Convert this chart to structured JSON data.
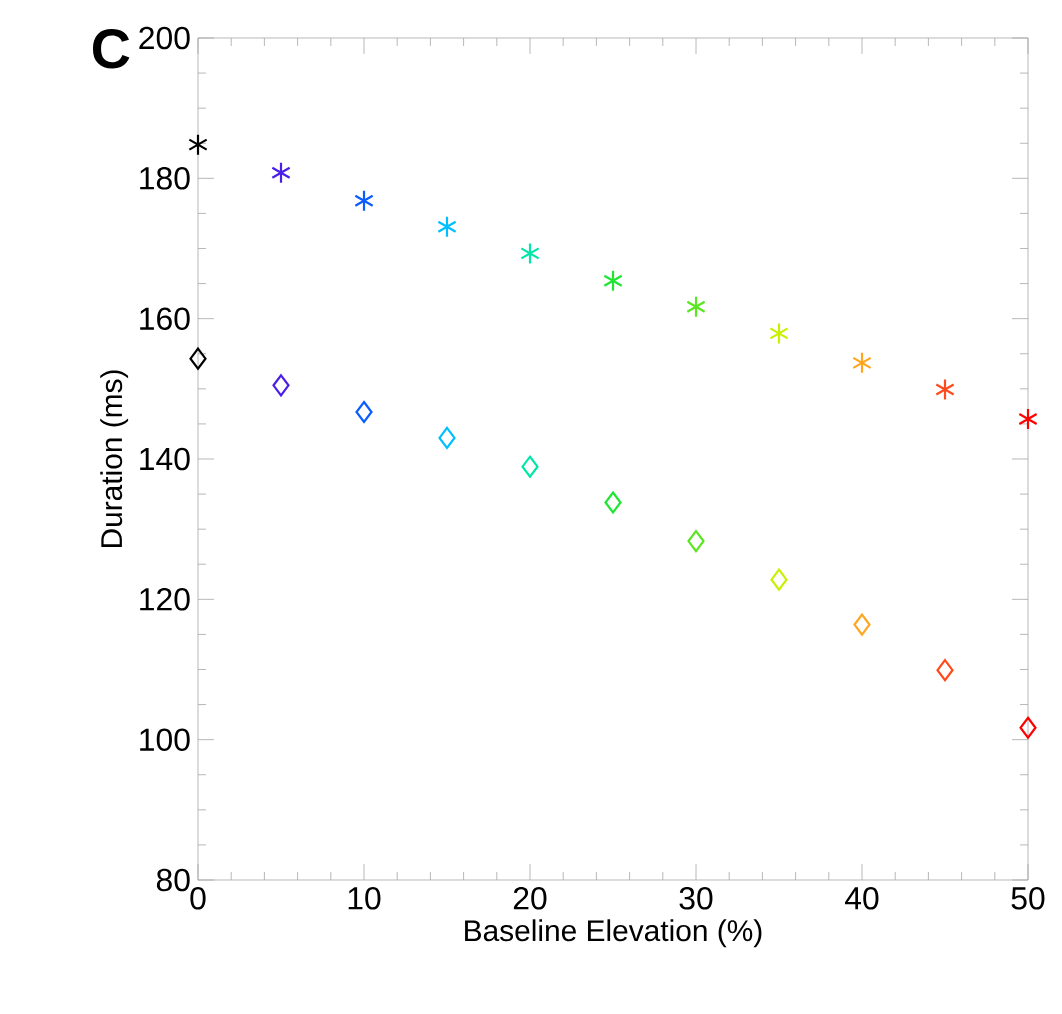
{
  "chart_data": {
    "type": "scatter",
    "title": "C",
    "xlabel": "Baseline Elevation (%)",
    "ylabel": "Duration (ms)",
    "x": [
      0,
      5,
      10,
      15,
      20,
      25,
      30,
      35,
      40,
      45,
      50
    ],
    "series": [
      {
        "marker": "cross",
        "colors": [
          "#000000",
          "#4a1ee6",
          "#0a5cff",
          "#00bfff",
          "#00e6a8",
          "#1ee632",
          "#5ae61e",
          "#c8f000",
          "#ffa51e",
          "#ff4a1e",
          "#ff0000"
        ],
        "values": [
          184.8,
          180.8,
          176.8,
          173.1,
          169.3,
          165.4,
          161.7,
          157.9,
          153.7,
          149.9,
          145.7
        ]
      },
      {
        "marker": "diamond",
        "colors": [
          "#000000",
          "#4a1ee6",
          "#0a5cff",
          "#00bfff",
          "#00e6a8",
          "#1ee632",
          "#5ae61e",
          "#c8f000",
          "#ffa51e",
          "#ff4a1e",
          "#ff0000"
        ],
        "values": [
          154.3,
          150.5,
          146.7,
          143.0,
          138.9,
          133.8,
          128.3,
          122.8,
          116.4,
          109.9,
          101.7
        ]
      }
    ],
    "xlim": [
      0,
      50
    ],
    "ylim": [
      80,
      200
    ],
    "xticks": [
      0,
      10,
      20,
      30,
      40,
      50
    ],
    "yticks": [
      80,
      100,
      120,
      140,
      160,
      180,
      200
    ]
  }
}
